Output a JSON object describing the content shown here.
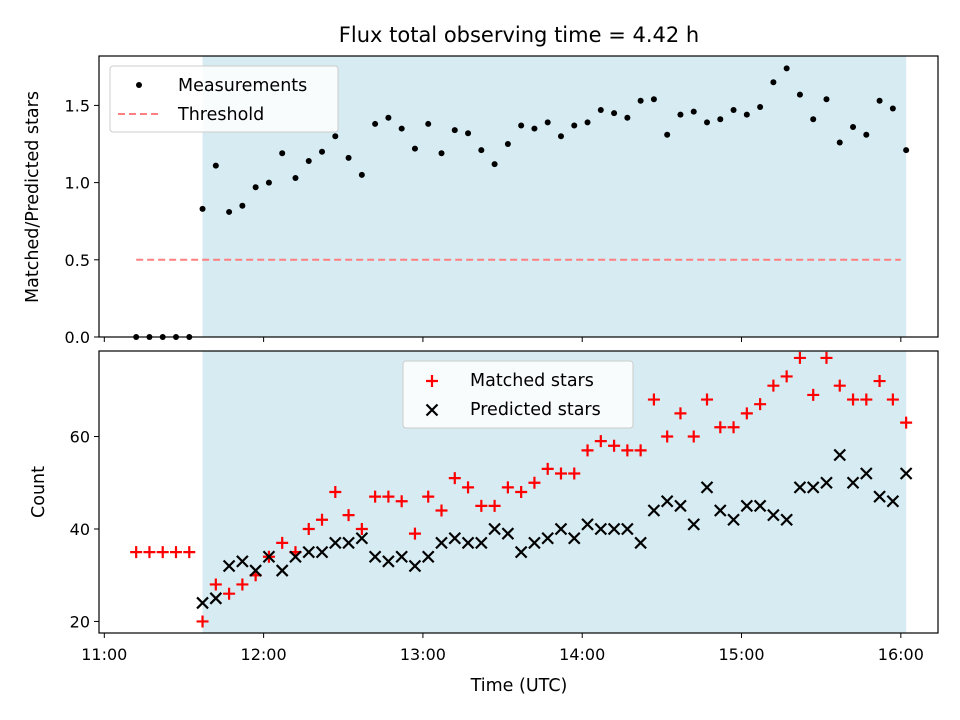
{
  "title": "Flux total observing time = 4.42 h",
  "colors": {
    "shade": "#add8e6",
    "measurements": "#000000",
    "threshold": "#ff8080",
    "matched": "#ff0000",
    "predicted": "#000000"
  },
  "chart_data": [
    {
      "type": "scatter",
      "ylabel": "Matched/Predicted stars",
      "ylim": [
        0,
        1.82
      ],
      "xlim": [
        "10:58",
        "16:14"
      ],
      "yticks": [
        "0.0",
        "0.5",
        "1.0",
        "1.5"
      ],
      "shaded_interval": [
        "11:37",
        "16:02"
      ],
      "legend": [
        "Measurements",
        "Threshold"
      ],
      "legend_placement": "upper-left",
      "threshold": 0.5,
      "threshold_range": [
        "11:12",
        "16:00"
      ],
      "series": [
        {
          "name": "Measurements",
          "points": [
            [
              "11:12",
              0
            ],
            [
              "11:17",
              0
            ],
            [
              "11:22",
              0
            ],
            [
              "11:27",
              0
            ],
            [
              "11:32",
              0
            ],
            [
              "11:37",
              0.83
            ],
            [
              "11:42",
              1.11
            ],
            [
              "11:47",
              0.81
            ],
            [
              "11:52",
              0.85
            ],
            [
              "11:57",
              0.97
            ],
            [
              "12:02",
              1.0
            ],
            [
              "12:07",
              1.19
            ],
            [
              "12:12",
              1.03
            ],
            [
              "12:17",
              1.14
            ],
            [
              "12:22",
              1.2
            ],
            [
              "12:27",
              1.3
            ],
            [
              "12:32",
              1.16
            ],
            [
              "12:37",
              1.05
            ],
            [
              "12:42",
              1.38
            ],
            [
              "12:47",
              1.42
            ],
            [
              "12:52",
              1.35
            ],
            [
              "12:57",
              1.22
            ],
            [
              "13:02",
              1.38
            ],
            [
              "13:07",
              1.19
            ],
            [
              "13:12",
              1.34
            ],
            [
              "13:17",
              1.32
            ],
            [
              "13:22",
              1.21
            ],
            [
              "13:27",
              1.12
            ],
            [
              "13:32",
              1.25
            ],
            [
              "13:37",
              1.37
            ],
            [
              "13:42",
              1.35
            ],
            [
              "13:47",
              1.39
            ],
            [
              "13:52",
              1.3
            ],
            [
              "13:57",
              1.37
            ],
            [
              "14:02",
              1.39
            ],
            [
              "14:07",
              1.47
            ],
            [
              "14:12",
              1.45
            ],
            [
              "14:17",
              1.42
            ],
            [
              "14:22",
              1.53
            ],
            [
              "14:27",
              1.54
            ],
            [
              "14:32",
              1.31
            ],
            [
              "14:37",
              1.44
            ],
            [
              "14:42",
              1.46
            ],
            [
              "14:47",
              1.39
            ],
            [
              "14:52",
              1.41
            ],
            [
              "14:57",
              1.47
            ],
            [
              "15:02",
              1.44
            ],
            [
              "15:07",
              1.49
            ],
            [
              "15:12",
              1.65
            ],
            [
              "15:17",
              1.74
            ],
            [
              "15:22",
              1.57
            ],
            [
              "15:27",
              1.41
            ],
            [
              "15:32",
              1.54
            ],
            [
              "15:37",
              1.26
            ],
            [
              "15:42",
              1.36
            ],
            [
              "15:47",
              1.31
            ],
            [
              "15:52",
              1.53
            ],
            [
              "15:57",
              1.48
            ],
            [
              "16:02",
              1.21
            ]
          ]
        }
      ]
    },
    {
      "type": "scatter",
      "xlabel": "Time (UTC)",
      "ylabel": "Count",
      "ylim": [
        17.5,
        78.5
      ],
      "xlim": [
        "10:58",
        "16:14"
      ],
      "xticks": [
        "11:00",
        "12:00",
        "13:00",
        "14:00",
        "15:00",
        "16:00"
      ],
      "yticks": [
        "20",
        "40",
        "60"
      ],
      "shaded_interval": [
        "11:37",
        "16:02"
      ],
      "legend": [
        "Matched stars",
        "Predicted stars"
      ],
      "legend_placement": "upper-center",
      "series": [
        {
          "name": "Matched stars",
          "points": [
            [
              "11:12",
              35
            ],
            [
              "11:17",
              35
            ],
            [
              "11:22",
              35
            ],
            [
              "11:27",
              35
            ],
            [
              "11:32",
              35
            ],
            [
              "11:37",
              20
            ],
            [
              "11:42",
              28
            ],
            [
              "11:47",
              26
            ],
            [
              "11:52",
              28
            ],
            [
              "11:57",
              30
            ],
            [
              "12:02",
              34
            ],
            [
              "12:07",
              37
            ],
            [
              "12:12",
              35
            ],
            [
              "12:17",
              40
            ],
            [
              "12:22",
              42
            ],
            [
              "12:27",
              48
            ],
            [
              "12:32",
              43
            ],
            [
              "12:37",
              40
            ],
            [
              "12:42",
              47
            ],
            [
              "12:47",
              47
            ],
            [
              "12:52",
              46
            ],
            [
              "12:57",
              39
            ],
            [
              "13:02",
              47
            ],
            [
              "13:07",
              44
            ],
            [
              "13:12",
              51
            ],
            [
              "13:17",
              49
            ],
            [
              "13:22",
              45
            ],
            [
              "13:27",
              45
            ],
            [
              "13:32",
              49
            ],
            [
              "13:37",
              48
            ],
            [
              "13:42",
              50
            ],
            [
              "13:47",
              53
            ],
            [
              "13:52",
              52
            ],
            [
              "13:57",
              52
            ],
            [
              "14:02",
              57
            ],
            [
              "14:07",
              59
            ],
            [
              "14:12",
              58
            ],
            [
              "14:17",
              57
            ],
            [
              "14:22",
              57
            ],
            [
              "14:27",
              68
            ],
            [
              "14:32",
              60
            ],
            [
              "14:37",
              65
            ],
            [
              "14:42",
              60
            ],
            [
              "14:47",
              68
            ],
            [
              "14:52",
              62
            ],
            [
              "14:57",
              62
            ],
            [
              "15:02",
              65
            ],
            [
              "15:07",
              67
            ],
            [
              "15:12",
              71
            ],
            [
              "15:17",
              73
            ],
            [
              "15:22",
              77
            ],
            [
              "15:27",
              69
            ],
            [
              "15:32",
              77
            ],
            [
              "15:37",
              71
            ],
            [
              "15:42",
              68
            ],
            [
              "15:47",
              68
            ],
            [
              "15:52",
              72
            ],
            [
              "15:57",
              68
            ],
            [
              "16:02",
              63
            ]
          ]
        },
        {
          "name": "Predicted stars",
          "points": [
            [
              "11:37",
              24
            ],
            [
              "11:42",
              25
            ],
            [
              "11:47",
              32
            ],
            [
              "11:52",
              33
            ],
            [
              "11:57",
              31
            ],
            [
              "12:02",
              34
            ],
            [
              "12:07",
              31
            ],
            [
              "12:12",
              34
            ],
            [
              "12:17",
              35
            ],
            [
              "12:22",
              35
            ],
            [
              "12:27",
              37
            ],
            [
              "12:32",
              37
            ],
            [
              "12:37",
              38
            ],
            [
              "12:42",
              34
            ],
            [
              "12:47",
              33
            ],
            [
              "12:52",
              34
            ],
            [
              "12:57",
              32
            ],
            [
              "13:02",
              34
            ],
            [
              "13:07",
              37
            ],
            [
              "13:12",
              38
            ],
            [
              "13:17",
              37
            ],
            [
              "13:22",
              37
            ],
            [
              "13:27",
              40
            ],
            [
              "13:32",
              39
            ],
            [
              "13:37",
              35
            ],
            [
              "13:42",
              37
            ],
            [
              "13:47",
              38
            ],
            [
              "13:52",
              40
            ],
            [
              "13:57",
              38
            ],
            [
              "14:02",
              41
            ],
            [
              "14:07",
              40
            ],
            [
              "14:12",
              40
            ],
            [
              "14:17",
              40
            ],
            [
              "14:22",
              37
            ],
            [
              "14:27",
              44
            ],
            [
              "14:32",
              46
            ],
            [
              "14:37",
              45
            ],
            [
              "14:42",
              41
            ],
            [
              "14:47",
              49
            ],
            [
              "14:52",
              44
            ],
            [
              "14:57",
              42
            ],
            [
              "15:02",
              45
            ],
            [
              "15:07",
              45
            ],
            [
              "15:12",
              43
            ],
            [
              "15:17",
              42
            ],
            [
              "15:22",
              49
            ],
            [
              "15:27",
              49
            ],
            [
              "15:32",
              50
            ],
            [
              "15:37",
              56
            ],
            [
              "15:42",
              50
            ],
            [
              "15:47",
              52
            ],
            [
              "15:52",
              47
            ],
            [
              "15:57",
              46
            ],
            [
              "16:02",
              52
            ]
          ]
        }
      ]
    }
  ]
}
